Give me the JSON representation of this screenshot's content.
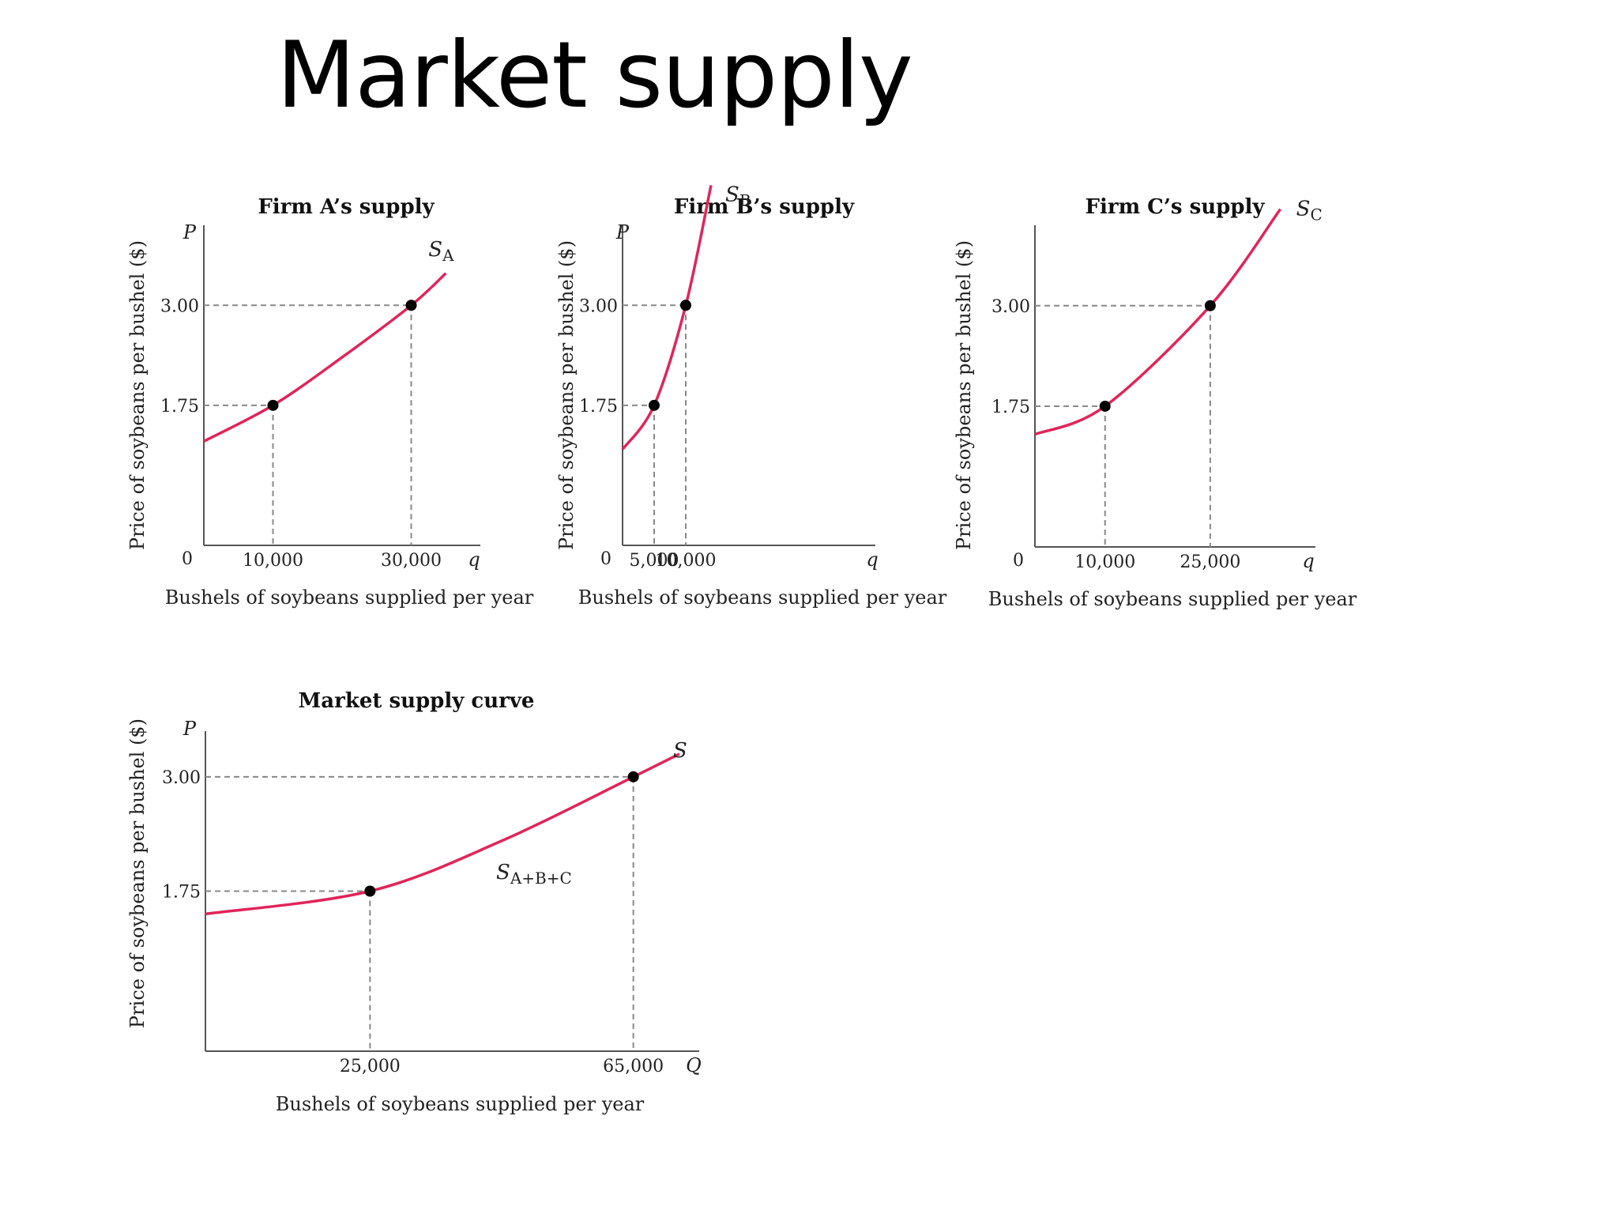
{
  "slide": {
    "title": "Market supply"
  },
  "chart_data": [
    {
      "type": "line",
      "title": "Firm A’s supply",
      "xlabel": "Bushels of soybeans supplied per year",
      "ylabel": "Price of soybeans per bushel ($)",
      "x_symbol": "q",
      "y_symbol": "P",
      "origin_label": "0",
      "x_ticks": [
        {
          "value": 10000,
          "label": "10,000"
        },
        {
          "value": 30000,
          "label": "30,000"
        }
      ],
      "y_ticks": [
        {
          "value": 1.75,
          "label": "1.75"
        },
        {
          "value": 3.0,
          "label": "3.00"
        }
      ],
      "xlim": [
        0,
        40000
      ],
      "ylim": [
        0,
        4.0
      ],
      "series": [
        {
          "name": "SA",
          "label_main": "S",
          "label_sub": "A",
          "x": [
            0,
            10000,
            20000,
            30000,
            35000
          ],
          "y": [
            1.3,
            1.75,
            2.35,
            3.0,
            3.4
          ]
        }
      ],
      "points": [
        {
          "x": 10000,
          "y": 1.75
        },
        {
          "x": 30000,
          "y": 3.0
        }
      ],
      "color": "#e0255a"
    },
    {
      "type": "line",
      "title": "Firm B’s supply",
      "xlabel": "Bushels of soybeans supplied per year",
      "ylabel": "Price of soybeans per bushel ($)",
      "x_symbol": "q",
      "y_symbol": "P",
      "origin_label": "0",
      "x_ticks": [
        {
          "value": 5000,
          "label": "5,000"
        },
        {
          "value": 10000,
          "label": "10,000"
        }
      ],
      "y_ticks": [
        {
          "value": 1.75,
          "label": "1.75"
        },
        {
          "value": 3.0,
          "label": "3.00"
        }
      ],
      "xlim": [
        0,
        40000
      ],
      "ylim": [
        0,
        4.0
      ],
      "series": [
        {
          "name": "SB",
          "label_main": "S",
          "label_sub": "B",
          "x": [
            0,
            5000,
            10000,
            14000
          ],
          "y": [
            1.2,
            1.75,
            3.0,
            4.5
          ]
        }
      ],
      "points": [
        {
          "x": 5000,
          "y": 1.75
        },
        {
          "x": 10000,
          "y": 3.0
        }
      ],
      "color": "#e0255a"
    },
    {
      "type": "line",
      "title": "Firm C’s supply",
      "xlabel": "Bushels of soybeans supplied per year",
      "ylabel": "Price of soybeans per bushel ($)",
      "x_symbol": "q",
      "y_symbol": "",
      "origin_label": "0",
      "x_ticks": [
        {
          "value": 10000,
          "label": "10,000"
        },
        {
          "value": 25000,
          "label": "25,000"
        }
      ],
      "y_ticks": [
        {
          "value": 1.75,
          "label": "1.75"
        },
        {
          "value": 3.0,
          "label": "3.00"
        }
      ],
      "xlim": [
        0,
        40000
      ],
      "ylim": [
        0,
        4.0
      ],
      "series": [
        {
          "name": "SC",
          "label_main": "S",
          "label_sub": "C",
          "x": [
            0,
            10000,
            25000,
            35000
          ],
          "y": [
            1.4,
            1.75,
            3.0,
            4.2
          ]
        }
      ],
      "points": [
        {
          "x": 10000,
          "y": 1.75
        },
        {
          "x": 25000,
          "y": 3.0
        }
      ],
      "color": "#e0255a"
    },
    {
      "type": "line",
      "title": "Market supply curve",
      "xlabel": "Bushels of soybeans supplied per year",
      "ylabel": "Price of soybeans per bushel ($)",
      "x_symbol": "Q",
      "y_symbol": "P",
      "origin_label": "",
      "x_ticks": [
        {
          "value": 25000,
          "label": "25,000"
        },
        {
          "value": 65000,
          "label": "65,000"
        }
      ],
      "y_ticks": [
        {
          "value": 1.75,
          "label": "1.75"
        },
        {
          "value": 3.0,
          "label": "3.00"
        }
      ],
      "xlim": [
        0,
        75000
      ],
      "ylim": [
        0,
        3.5
      ],
      "series": [
        {
          "name": "SA+B+C",
          "label_main": "S",
          "label_sub": "A+B+C",
          "x": [
            0,
            25000,
            45000,
            65000,
            72000
          ],
          "y": [
            1.5,
            1.75,
            2.3,
            3.0,
            3.25
          ]
        },
        {
          "name": "S",
          "label_main": "S",
          "label_sub": ""
        }
      ],
      "points": [
        {
          "x": 25000,
          "y": 1.75
        },
        {
          "x": 65000,
          "y": 3.0
        }
      ],
      "color": "#e0255a"
    }
  ]
}
